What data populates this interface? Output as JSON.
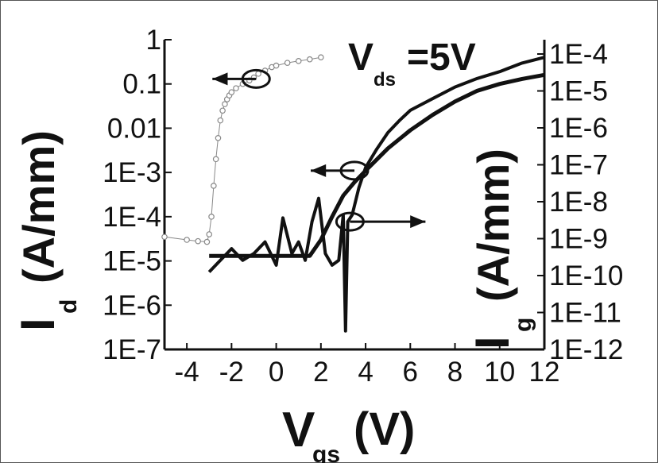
{
  "chart_data": {
    "type": "line",
    "title": "",
    "annotation": {
      "main": "V",
      "sub": "ds",
      "suffix": "=5V"
    },
    "xlabel": {
      "main": "V",
      "sub": "gs",
      "unit": "(V)"
    },
    "ylabel_left": {
      "main": "I",
      "sub": "d",
      "unit": "(A/mm)"
    },
    "ylabel_right": {
      "main": "I",
      "sub": "g",
      "unit": "(A/mm)"
    },
    "xlim": [
      -5,
      12
    ],
    "ylim_left_log10": [
      -7,
      0
    ],
    "ylim_right_log10": [
      -12,
      -4
    ],
    "x_ticks": [
      "-4",
      "-2",
      "0",
      "2",
      "4",
      "6",
      "8",
      "10",
      "12"
    ],
    "y_left_ticks": [
      "1",
      "0.1",
      "0.01",
      "1E-3",
      "1E-4",
      "1E-5",
      "1E-6",
      "1E-7"
    ],
    "y_right_ticks": [
      "1E-4",
      "1E-5",
      "1E-6",
      "1E-7",
      "1E-8",
      "1E-9",
      "1E-10",
      "1E-11",
      "1E-12"
    ],
    "colors": {
      "axis": "#111111",
      "curve": "#111111",
      "open_marker": "#888888"
    },
    "series": [
      {
        "axis": "left",
        "style": "open-circle",
        "x": [
          -5,
          -4,
          -3.5,
          -3.1,
          -3,
          -2.9,
          -2.8,
          -2.7,
          -2.6,
          -2.5,
          -2.4,
          -2.3,
          -2.2,
          -2.1,
          -2.0,
          -1.8,
          -1.5,
          -1.2,
          -1.0,
          -0.8,
          -0.5,
          -0.2,
          0.0,
          0.5,
          1.0,
          1.5,
          2.0
        ],
        "y": [
          3.5e-05,
          3e-05,
          2.8e-05,
          2.7e-05,
          4e-05,
          0.0001,
          0.0005,
          0.002,
          0.006,
          0.015,
          0.025,
          0.035,
          0.045,
          0.055,
          0.065,
          0.08,
          0.1,
          0.12,
          0.14,
          0.17,
          0.2,
          0.24,
          0.26,
          0.3,
          0.33,
          0.36,
          0.4
        ]
      },
      {
        "axis": "left",
        "style": "dense-line",
        "x": [
          -3,
          -2,
          -1,
          0,
          1,
          1.5,
          2.0,
          2.5,
          3.0,
          3.5,
          4.0,
          5.0,
          6.0,
          7.0,
          8.0,
          9.0,
          10.0,
          11.0,
          12.0
        ],
        "y": [
          1.3e-05,
          1.3e-05,
          1.3e-05,
          1.3e-05,
          1.3e-05,
          1.3e-05,
          3e-05,
          0.0001,
          0.0003,
          0.0006,
          0.0011,
          0.0035,
          0.009,
          0.02,
          0.04,
          0.07,
          0.1,
          0.13,
          0.16
        ]
      },
      {
        "axis": "right",
        "style": "line",
        "x": [
          -3,
          -2.5,
          -2.0,
          -1.5,
          -1.0,
          -0.5,
          0.0,
          0.3,
          0.7,
          1.0,
          1.3,
          1.6,
          1.9,
          2.2,
          2.5,
          2.8,
          3.0,
          3.1,
          3.2,
          3.4,
          3.7,
          4.0,
          4.5,
          5.0,
          5.5,
          6.0,
          7.0,
          8.0,
          9.0,
          10.0,
          11.0,
          12.0
        ],
        "y": [
          1e-10,
          2e-10,
          4e-10,
          2e-10,
          3e-10,
          6e-10,
          1.5e-10,
          2.5e-09,
          3e-10,
          6e-10,
          2e-10,
          2e-09,
          8e-09,
          3e-10,
          1.5e-10,
          2e-10,
          3e-09,
          3e-12,
          2e-09,
          3e-09,
          1.5e-08,
          5e-08,
          1.5e-07,
          4e-07,
          8e-07,
          1.5e-06,
          3e-06,
          6e-06,
          1e-05,
          1.5e-05,
          2.5e-05,
          3.5e-05
        ]
      }
    ],
    "arrows": [
      {
        "x": -0.9,
        "y": 0.13,
        "axis": "left",
        "direction": "left"
      },
      {
        "x": 3.5,
        "y": 0.0011,
        "axis": "left",
        "direction": "left"
      },
      {
        "x": 3.3,
        "y": 2e-09,
        "axis": "right",
        "direction": "right"
      }
    ]
  }
}
